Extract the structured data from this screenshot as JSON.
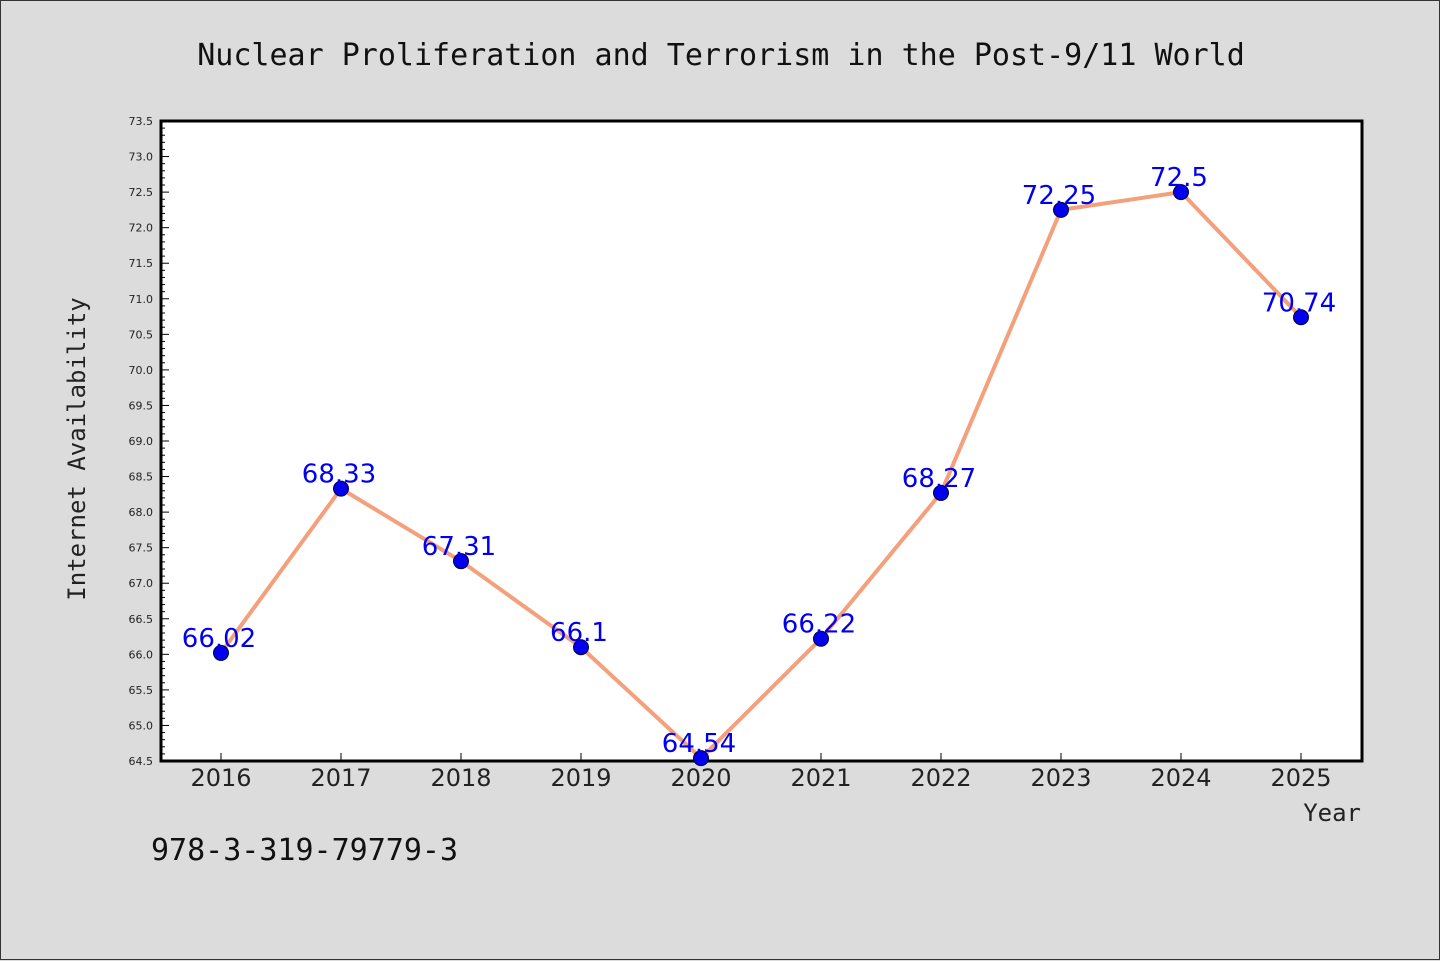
{
  "chart_data": {
    "type": "line",
    "title": "Nuclear Proliferation and Terrorism in the Post-9/11 World",
    "xlabel": "Year",
    "ylabel": "Internet Availability",
    "x": [
      "2016",
      "2017",
      "2018",
      "2019",
      "2020",
      "2021",
      "2022",
      "2023",
      "2024",
      "2025"
    ],
    "values": [
      66.02,
      68.33,
      67.31,
      66.1,
      64.54,
      66.22,
      68.27,
      72.25,
      72.5,
      70.74
    ],
    "data_labels": [
      "66.02",
      "68.33",
      "67.31",
      "66.1",
      "64.54",
      "66.22",
      "68.27",
      "72.25",
      "72.5",
      "70.74"
    ],
    "ylim": [
      64.5,
      73.5
    ],
    "yticks": [
      "64.5",
      "65.0",
      "65.5",
      "66.0",
      "66.5",
      "67.0",
      "67.5",
      "68.0",
      "68.5",
      "69.0",
      "69.5",
      "70.0",
      "70.5",
      "71.0",
      "71.5",
      "72.0",
      "72.5",
      "73.0",
      "73.5"
    ],
    "grid": false,
    "colors": {
      "line": "#f4a07c",
      "marker": "#0000ee",
      "label": "#0000ee"
    }
  },
  "footer": {
    "isbn": "978-3-319-79779-3"
  }
}
